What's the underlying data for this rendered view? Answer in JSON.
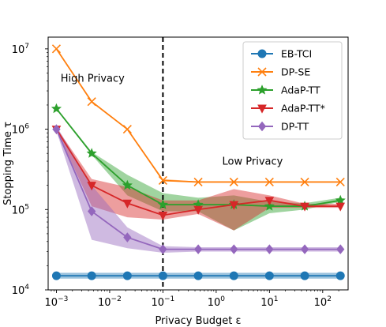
{
  "chart_data": {
    "type": "line",
    "xlabel": "Privacy Budget ε",
    "ylabel": "Stopping Time τ",
    "xscale": "log",
    "yscale": "log",
    "xlim": [
      0.0007,
      300
    ],
    "ylim": [
      10000,
      14000000
    ],
    "x": [
      0.001,
      0.0046,
      0.0215,
      0.1,
      0.46,
      2.15,
      10,
      46,
      215
    ],
    "xtick_values": [
      0.001,
      0.01,
      0.1,
      1,
      10,
      100
    ],
    "xtick_labels": [
      [
        "10",
        "−3"
      ],
      [
        "10",
        "−2"
      ],
      [
        "10",
        "−1"
      ],
      [
        "10",
        "0"
      ],
      [
        "10",
        "1"
      ],
      [
        "10",
        "2"
      ]
    ],
    "ytick_values": [
      10000,
      100000,
      1000000,
      10000000
    ],
    "ytick_labels": [
      [
        "10",
        "4"
      ],
      [
        "10",
        "5"
      ],
      [
        "10",
        "6"
      ],
      [
        "10",
        "7"
      ]
    ],
    "vline_x": 0.1,
    "annotations": [
      {
        "text": "High Privacy",
        "x": 0.0012,
        "y": 3900000
      },
      {
        "text": "Low Privacy",
        "x": 1.3,
        "y": 360000
      }
    ],
    "legend_position": "top-right",
    "series": [
      {
        "name": "EB-TCI",
        "color": "#1f77b4",
        "marker": "circle",
        "values": [
          15000,
          15000,
          15000,
          15000,
          15000,
          15000,
          15000,
          15000,
          15000
        ],
        "band_low": [
          13800,
          13800,
          13800,
          13800,
          13800,
          13800,
          13800,
          13800,
          13800
        ],
        "band_high": [
          16300,
          16300,
          16300,
          16300,
          16300,
          16300,
          16300,
          16300,
          16300
        ]
      },
      {
        "name": "DP-SE",
        "color": "#ff7f0e",
        "marker": "x",
        "values": [
          10000000,
          2200000,
          1000000,
          230000,
          220000,
          220000,
          220000,
          220000,
          220000
        ],
        "band_low": [
          9800000,
          2150000,
          980000,
          225000,
          218000,
          218000,
          218000,
          218000,
          218000
        ],
        "band_high": [
          10200000,
          2250000,
          1020000,
          240000,
          223000,
          223000,
          223000,
          223000,
          223000
        ]
      },
      {
        "name": "AdaP-TT",
        "color": "#2ca02c",
        "marker": "star",
        "values": [
          1800000,
          500000,
          200000,
          115000,
          115000,
          115000,
          110000,
          110000,
          130000
        ],
        "band_low": [
          1750000,
          480000,
          150000,
          95000,
          95000,
          55000,
          90000,
          100000,
          125000
        ],
        "band_high": [
          1850000,
          520000,
          270000,
          160000,
          140000,
          150000,
          125000,
          120000,
          140000
        ]
      },
      {
        "name": "AdaP-TT*",
        "color": "#d62728",
        "marker": "triangle-down",
        "values": [
          1000000,
          200000,
          120000,
          85000,
          100000,
          115000,
          130000,
          110000,
          110000
        ],
        "band_low": [
          980000,
          110000,
          80000,
          75000,
          88000,
          55000,
          105000,
          105000,
          105000
        ],
        "band_high": [
          1050000,
          240000,
          190000,
          130000,
          130000,
          180000,
          150000,
          118000,
          118000
        ]
      },
      {
        "name": "DP-TT",
        "color": "#9467bd",
        "marker": "diamond",
        "values": [
          1000000,
          95000,
          45000,
          32000,
          32000,
          32000,
          32000,
          32000,
          32000
        ],
        "band_low": [
          950000,
          42000,
          33000,
          29000,
          30000,
          30000,
          30000,
          30000,
          30000
        ],
        "band_high": [
          1100000,
          200000,
          60000,
          35000,
          34000,
          34000,
          34000,
          34000,
          34000
        ]
      }
    ]
  }
}
